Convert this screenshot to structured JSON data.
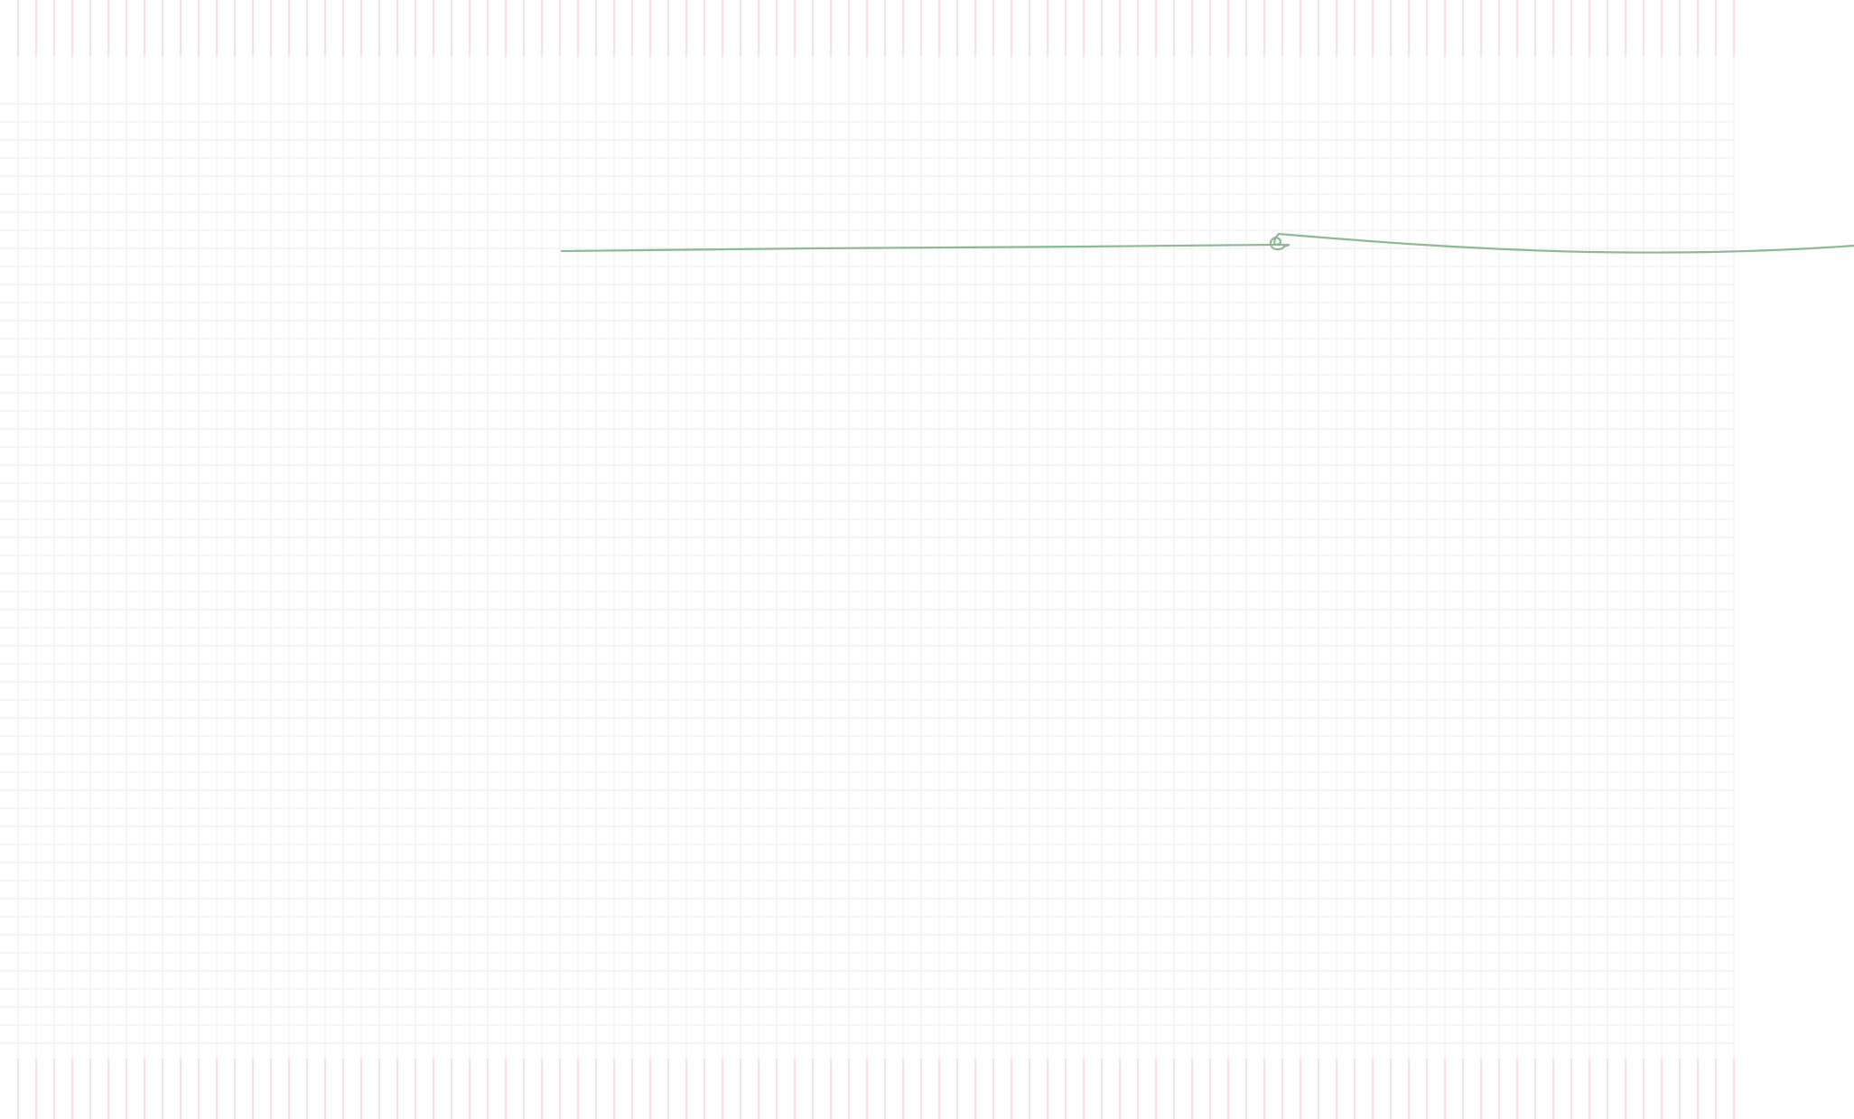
{
  "canvas": {
    "grid_line_color": "#ececec",
    "edge_tick_color": "#f4c9d2",
    "background_color": "#ffffff"
  },
  "stroke": {
    "color": "#8fb996",
    "description": "hand-drawn line"
  }
}
